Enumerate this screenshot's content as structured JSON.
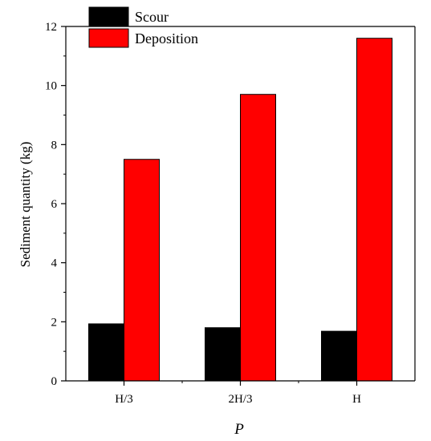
{
  "chart_data": {
    "type": "bar",
    "categories": [
      "H/3",
      "2H/3",
      "H"
    ],
    "series": [
      {
        "name": "Scour",
        "values": [
          1.93,
          1.8,
          1.68
        ],
        "color": "#000000"
      },
      {
        "name": "Deposition",
        "values": [
          7.5,
          9.7,
          11.6
        ],
        "color": "#ff0000"
      }
    ],
    "xlabel": "P",
    "ylabel": "Sediment quantity (kg)",
    "ylim": [
      0,
      12
    ],
    "yticks": [
      "0",
      "2",
      "4",
      "6",
      "8",
      "10",
      "12"
    ],
    "grid": false,
    "legend_position": "top-left"
  }
}
